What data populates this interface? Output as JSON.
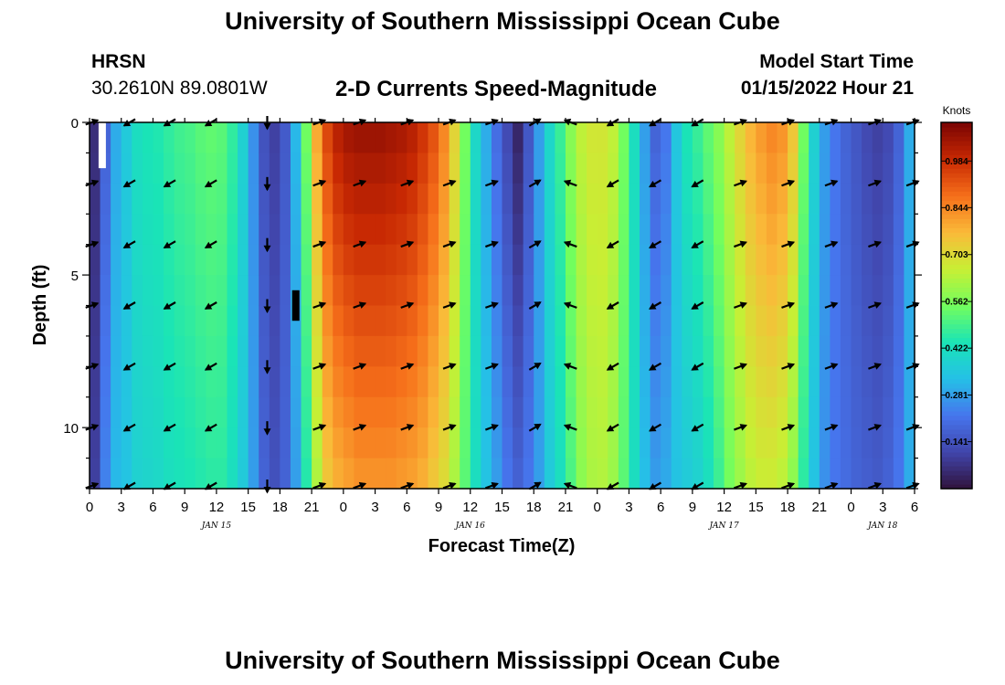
{
  "header": {
    "title": "University of Southern Mississippi Ocean Cube",
    "station_name": "HRSN",
    "station_coords": "30.2610N  89.0801W",
    "plot_title": "2-D Currents Speed-Magnitude",
    "model_start_label": "Model Start Time",
    "model_start_value": "01/15/2022 Hour 21"
  },
  "footer": {
    "title": "University of Southern Mississippi Ocean Cube"
  },
  "chart_data": {
    "type": "heatmap",
    "title": "2-D Currents Speed-Magnitude",
    "xlabel": "Forecast Time(Z)",
    "ylabel": "Depth (ft)",
    "x_hours_range": [
      0,
      78
    ],
    "ylim": [
      0,
      12
    ],
    "x_tick_hours": [
      0,
      3,
      6,
      9,
      12,
      15,
      18,
      21,
      24,
      27,
      30,
      33,
      36,
      39,
      42,
      45,
      48,
      51,
      54,
      57,
      60,
      63,
      66,
      69,
      72,
      75,
      78
    ],
    "x_tick_labels": [
      "0",
      "3",
      "6",
      "9",
      "12",
      "15",
      "18",
      "21",
      "0",
      "3",
      "6",
      "9",
      "12",
      "15",
      "18",
      "21",
      "0",
      "3",
      "6",
      "9",
      "12",
      "15",
      "18",
      "21",
      "0",
      "3",
      "6"
    ],
    "y_ticks": [
      0,
      5,
      10
    ],
    "y_tick_labels": [
      "0",
      "5",
      "10"
    ],
    "date_labels": [
      {
        "text": "JAN 15",
        "hour": 12
      },
      {
        "text": "JAN 16",
        "hour": 36
      },
      {
        "text": "JAN 17",
        "hour": 60
      },
      {
        "text": "JAN 18",
        "hour": 75
      }
    ],
    "colorbar": {
      "label": "Knots",
      "min": 0.0,
      "max": 1.1,
      "ticks": [
        0.141,
        0.281,
        0.422,
        0.562,
        0.703,
        0.844,
        0.984
      ],
      "tick_labels": [
        "0.141",
        "0.281",
        "0.422",
        "0.562",
        "0.703",
        "0.844",
        "0.984"
      ]
    },
    "speed_profile": {
      "hours": [
        0,
        1,
        2,
        3,
        4,
        5,
        6,
        7,
        8,
        9,
        10,
        11,
        12,
        13,
        14,
        15,
        16,
        17,
        18,
        19,
        20,
        21,
        22,
        23,
        24,
        25,
        26,
        27,
        28,
        29,
        30,
        31,
        32,
        33,
        34,
        35,
        36,
        37,
        38,
        39,
        40,
        41,
        42,
        43,
        44,
        45,
        46,
        47,
        48,
        49,
        50,
        51,
        52,
        53,
        54,
        55,
        56,
        57,
        58,
        59,
        60,
        61,
        62,
        63,
        64,
        65,
        66,
        67,
        68,
        69,
        70,
        71,
        72,
        73,
        74,
        75,
        76,
        77
      ],
      "surface": [
        0.06,
        0.18,
        0.3,
        0.36,
        0.42,
        0.44,
        0.45,
        0.47,
        0.49,
        0.5,
        0.52,
        0.53,
        0.52,
        0.47,
        0.38,
        0.26,
        0.14,
        0.1,
        0.16,
        0.32,
        0.55,
        0.8,
        0.95,
        1.02,
        1.05,
        1.06,
        1.06,
        1.06,
        1.05,
        1.04,
        1.02,
        0.98,
        0.93,
        0.85,
        0.72,
        0.55,
        0.4,
        0.3,
        0.2,
        0.12,
        0.04,
        0.15,
        0.28,
        0.4,
        0.48,
        0.58,
        0.65,
        0.68,
        0.68,
        0.65,
        0.55,
        0.42,
        0.28,
        0.18,
        0.22,
        0.35,
        0.44,
        0.48,
        0.53,
        0.58,
        0.65,
        0.72,
        0.78,
        0.82,
        0.85,
        0.83,
        0.75,
        0.55,
        0.38,
        0.28,
        0.22,
        0.18,
        0.15,
        0.12,
        0.1,
        0.12,
        0.18,
        0.3
      ],
      "bottom": [
        0.1,
        0.24,
        0.32,
        0.34,
        0.38,
        0.39,
        0.4,
        0.42,
        0.43,
        0.44,
        0.45,
        0.46,
        0.46,
        0.42,
        0.36,
        0.28,
        0.18,
        0.14,
        0.18,
        0.28,
        0.45,
        0.62,
        0.74,
        0.78,
        0.8,
        0.82,
        0.82,
        0.82,
        0.82,
        0.81,
        0.8,
        0.78,
        0.74,
        0.7,
        0.62,
        0.52,
        0.42,
        0.34,
        0.28,
        0.22,
        0.18,
        0.22,
        0.28,
        0.36,
        0.42,
        0.5,
        0.58,
        0.62,
        0.63,
        0.6,
        0.52,
        0.42,
        0.33,
        0.28,
        0.3,
        0.34,
        0.36,
        0.38,
        0.42,
        0.48,
        0.55,
        0.6,
        0.64,
        0.66,
        0.66,
        0.64,
        0.58,
        0.46,
        0.34,
        0.26,
        0.22,
        0.2,
        0.18,
        0.17,
        0.16,
        0.18,
        0.22,
        0.3
      ]
    },
    "vector_depths": [
      0,
      2,
      4,
      6,
      8,
      10,
      12
    ],
    "vector_hours": [
      0.2,
      3.8,
      7.6,
      11.5,
      16.8,
      21.7,
      25.5,
      30.0,
      34.0,
      38.0,
      42.1,
      45.5,
      49.5,
      53.5,
      57.5,
      61.5,
      66.0,
      70.1,
      74.2,
      77.8
    ],
    "vector_directions_deg": [
      20,
      210,
      210,
      210,
      270,
      20,
      20,
      20,
      20,
      20,
      30,
      160,
      210,
      210,
      210,
      20,
      20,
      20,
      20,
      20
    ],
    "annotation_marks": [
      {
        "kind": "white-bar",
        "hour": 1.2,
        "depth_range": [
          0,
          1.5
        ]
      },
      {
        "kind": "black-bar",
        "hour": 19.5,
        "depth_range": [
          5.5,
          6.5
        ]
      }
    ]
  }
}
